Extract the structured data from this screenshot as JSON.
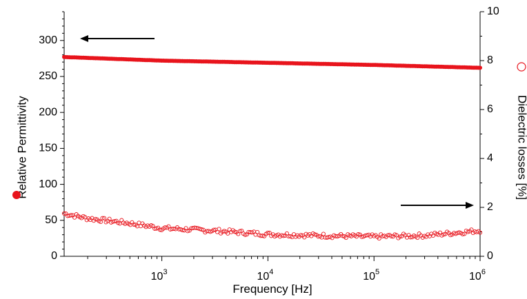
{
  "chart_data": {
    "type": "scatter",
    "xlabel": "Frequency [Hz]",
    "ylabel_left": "Relative Permittivity",
    "ylabel_right": "Dielectric losses [%]",
    "x_scale": "log",
    "xlim": [
      120,
      1000000
    ],
    "ylim_left": [
      0,
      340
    ],
    "ylim_right": [
      0,
      10
    ],
    "xticks": [
      {
        "value": 1000,
        "base": "10",
        "exp": "3"
      },
      {
        "value": 10000,
        "base": "10",
        "exp": "4"
      },
      {
        "value": 100000,
        "base": "10",
        "exp": "5"
      },
      {
        "value": 1000000,
        "base": "10",
        "exp": "6"
      }
    ],
    "yticks_left": [
      0,
      50,
      100,
      150,
      200,
      250,
      300
    ],
    "yticks_right": [
      0,
      2,
      4,
      6,
      8,
      10
    ],
    "grid": false,
    "colors": {
      "series": "#e8141c",
      "axis": "#000000"
    },
    "series": [
      {
        "axis": "left",
        "marker": "filled-circle",
        "x": [
          120,
          1000,
          10000,
          100000,
          1000000
        ],
        "y": [
          277,
          272,
          269,
          266,
          262
        ]
      },
      {
        "axis": "right",
        "marker": "open-circle",
        "x": [
          120,
          200,
          500,
          1000,
          3000,
          10000,
          30000,
          100000,
          300000,
          1000000
        ],
        "y": [
          1.75,
          1.55,
          1.35,
          1.15,
          1.05,
          0.9,
          0.85,
          0.8,
          0.85,
          1.05
        ]
      }
    ],
    "annotations": [
      {
        "type": "arrow",
        "direction": "left",
        "target_axis": "left"
      },
      {
        "type": "arrow",
        "direction": "right",
        "target_axis": "right"
      }
    ]
  }
}
